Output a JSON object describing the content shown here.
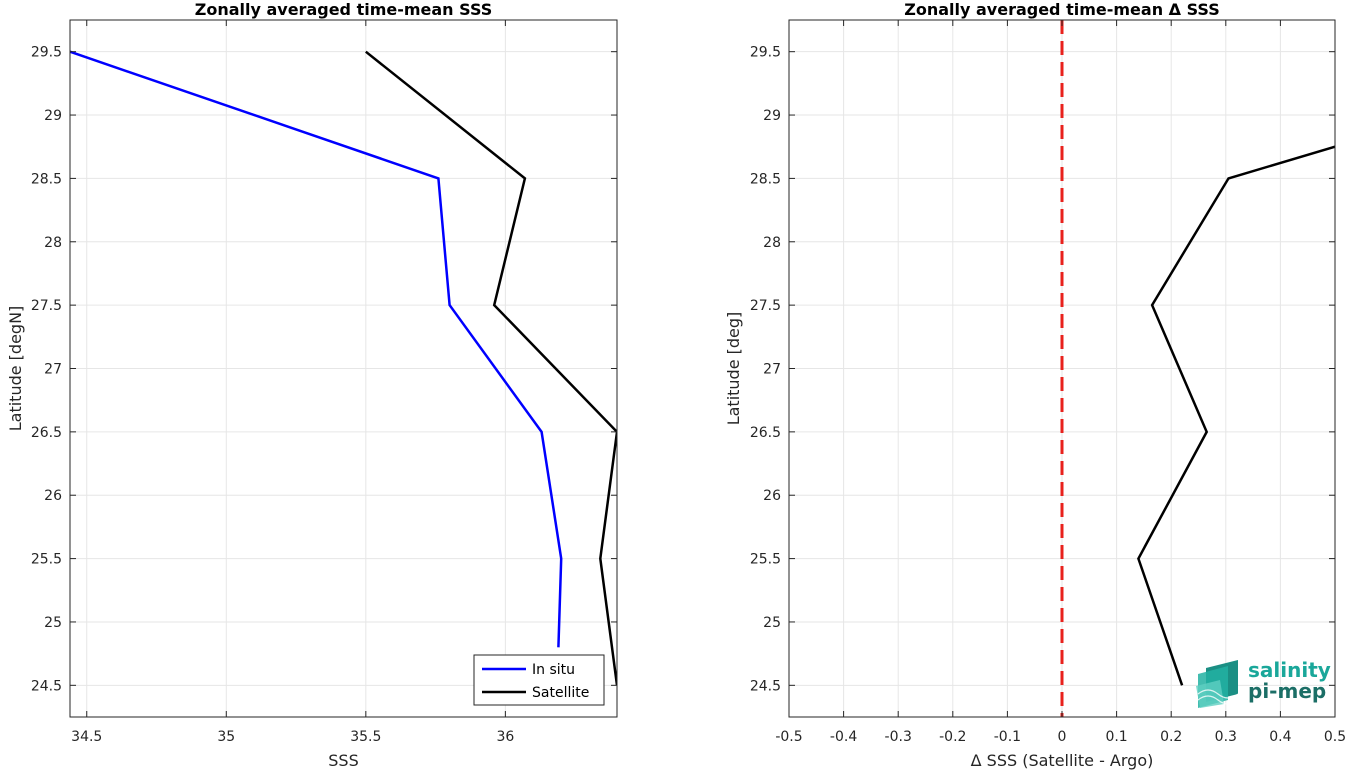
{
  "chart_data": [
    {
      "type": "line",
      "title": "Zonally averaged time-mean SSS",
      "xlabel": "SSS",
      "ylabel": "Latitude [degN]",
      "xlim": [
        34.44,
        36.4
      ],
      "ylim": [
        24.25,
        29.75
      ],
      "xticks": [
        34.5,
        35,
        35.5,
        36
      ],
      "yticks": [
        24.5,
        25,
        25.5,
        26,
        26.5,
        27,
        27.5,
        28,
        28.5,
        29,
        29.5
      ],
      "grid": true,
      "legend_position": "bottom-right",
      "series": [
        {
          "name": "In situ",
          "color": "#0000ff",
          "points": [
            {
              "x": 36.19,
              "y": 24.8
            },
            {
              "x": 36.2,
              "y": 25.5
            },
            {
              "x": 36.13,
              "y": 26.5
            },
            {
              "x": 35.8,
              "y": 27.5
            },
            {
              "x": 35.76,
              "y": 28.5
            },
            {
              "x": 34.44,
              "y": 29.5
            }
          ]
        },
        {
          "name": "Satellite",
          "color": "#000000",
          "points": [
            {
              "x": 36.4,
              "y": 24.5
            },
            {
              "x": 36.34,
              "y": 25.5
            },
            {
              "x": 36.4,
              "y": 26.5
            },
            {
              "x": 35.96,
              "y": 27.5
            },
            {
              "x": 36.07,
              "y": 28.5
            },
            {
              "x": 35.5,
              "y": 29.5
            }
          ]
        }
      ]
    },
    {
      "type": "line",
      "title": "Zonally averaged time-mean Δ SSS",
      "xlabel": "Δ SSS (Satellite - Argo)",
      "ylabel": "Latitude [deg]",
      "xlim": [
        -0.5,
        0.5
      ],
      "ylim": [
        24.25,
        29.75
      ],
      "xticks": [
        -0.5,
        -0.4,
        -0.3,
        -0.2,
        -0.1,
        0,
        0.1,
        0.2,
        0.3,
        0.4,
        0.5
      ],
      "yticks": [
        24.5,
        25,
        25.5,
        26,
        26.5,
        27,
        27.5,
        28,
        28.5,
        29,
        29.5
      ],
      "grid": true,
      "reference_line": {
        "x": 0,
        "color": "#e8211c",
        "style": "dashed"
      },
      "series": [
        {
          "color": "#000000",
          "points": [
            {
              "x": 0.22,
              "y": 24.5
            },
            {
              "x": 0.14,
              "y": 25.5
            },
            {
              "x": 0.265,
              "y": 26.5
            },
            {
              "x": 0.165,
              "y": 27.5
            },
            {
              "x": 0.305,
              "y": 28.5
            },
            {
              "x": 0.5,
              "y": 28.75
            }
          ]
        }
      ]
    }
  ],
  "logo": {
    "line1": "salinity",
    "line2": "pi-mep",
    "icon": "salinity-wave-icon",
    "color1": "#1aa79a",
    "color2": "#1b6e66"
  }
}
